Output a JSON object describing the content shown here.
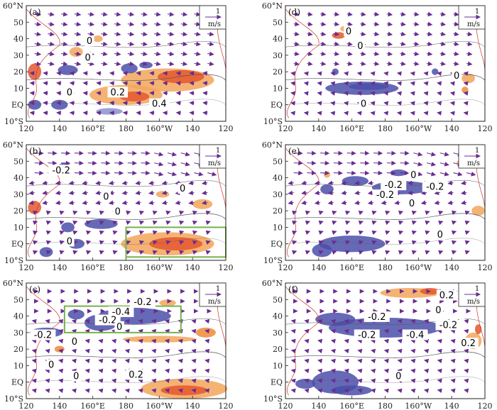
{
  "colors": {
    "warm_light": "#f2a65a",
    "warm_mid": "#ee8a3a",
    "warm_dark": "#e4572e",
    "cool": "#4b4fa8",
    "cool_light": "#8a8fd0",
    "vector": "#6a2d91",
    "coast": "#d0352b",
    "contour": "#555555",
    "box": "#73b34a"
  },
  "icons": {
    "unit_arrow": "right-arrow-icon"
  },
  "axes": {
    "y_ticks": [
      "60°N",
      "50",
      "40",
      "30",
      "20",
      "10",
      "EQ",
      "10°S"
    ],
    "x_ticks": [
      "120",
      "140",
      "160°E",
      "180",
      "160°W",
      "140",
      "120"
    ]
  },
  "reference_vector": {
    "value": "1",
    "unit": "m/s"
  },
  "panels": [
    {
      "label": "(a)",
      "contour_labels": [
        "0",
        "0",
        "0",
        "0.2",
        "0.4"
      ],
      "box": false
    },
    {
      "label": "(b)",
      "contour_labels": [
        "-0.2",
        "0",
        "0",
        "0",
        "0"
      ],
      "box": true
    },
    {
      "label": "(c)",
      "contour_labels": [
        "-0.4",
        "-0.2",
        "-0.2",
        "-0.2",
        "0",
        "0",
        "0",
        "0",
        "0.2"
      ],
      "box": true
    },
    {
      "label": "(d)",
      "contour_labels": [
        "0",
        "0",
        "0",
        "0"
      ],
      "box": false
    },
    {
      "label": "(e)",
      "contour_labels": [
        "-0.2",
        "-0.2",
        "-0.2",
        "0",
        "0",
        "0"
      ],
      "box": false
    },
    {
      "label": "(f)",
      "contour_labels": [
        "0.2",
        "-0.2",
        "-0.4",
        "-0.4",
        "-0.2",
        "-0.2",
        "0",
        "0.2",
        "0"
      ],
      "box": false
    }
  ]
}
